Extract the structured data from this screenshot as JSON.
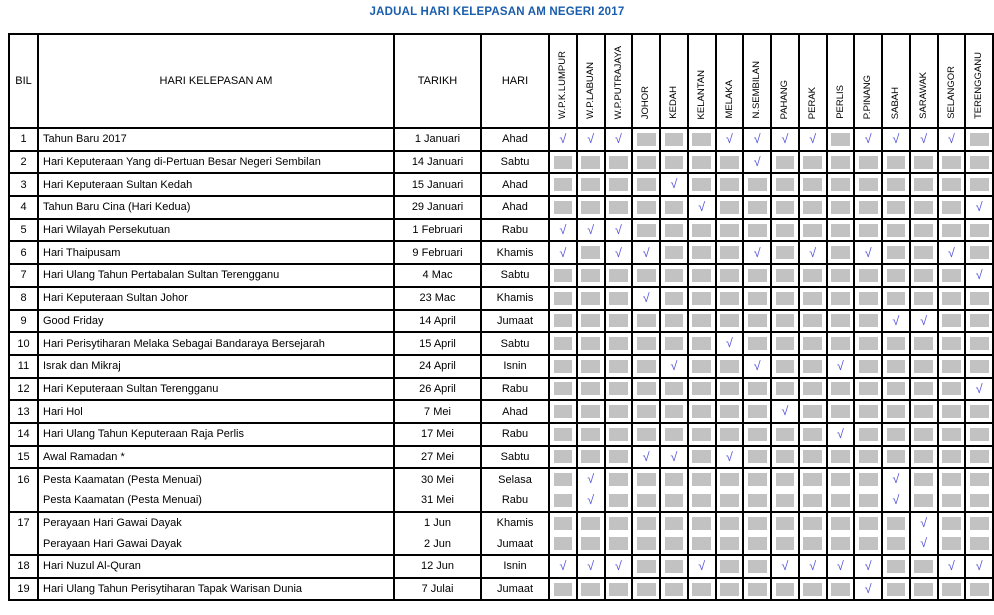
{
  "title": "JADUAL HARI KELEPASAN AM NEGERI 2017",
  "table": {
    "headers": {
      "bil": "BIL",
      "holiday": "HARI KELEPASAN AM",
      "date": "TARIKH",
      "day": "HARI"
    },
    "states": [
      "W.P.K.LUMPUR",
      "W.P.LABUAN",
      "W.P.PUTRAJAYA",
      "JOHOR",
      "KEDAH",
      "KELANTAN",
      "MELAKA",
      "N.SEMBILAN",
      "PAHANG",
      "PERAK",
      "PERLIS",
      "P.PINANG",
      "SABAH",
      "SARAWAK",
      "SELANGOR",
      "TERENGGANU"
    ],
    "check_symbol": "√",
    "colors": {
      "title_blue": "#1a5dab",
      "check_blue": "#5353d9",
      "gray_box": "#c2c2c2"
    },
    "rows": [
      {
        "bil": "1",
        "lines": [
          {
            "holiday": "Tahun Baru 2017",
            "date": "1 Januari",
            "day": "Ahad",
            "marks": [
              1,
              1,
              1,
              0,
              0,
              0,
              1,
              1,
              1,
              1,
              0,
              1,
              1,
              1,
              1,
              0
            ]
          }
        ]
      },
      {
        "bil": "2",
        "lines": [
          {
            "holiday": "Hari Keputeraan Yang di-Pertuan Besar Negeri Sembilan",
            "date": "14 Januari",
            "day": "Sabtu",
            "marks": [
              0,
              0,
              0,
              0,
              0,
              0,
              0,
              1,
              0,
              0,
              0,
              0,
              0,
              0,
              0,
              0
            ]
          }
        ]
      },
      {
        "bil": "3",
        "lines": [
          {
            "holiday": "Hari Keputeraan Sultan Kedah",
            "date": "15 Januari",
            "day": "Ahad",
            "marks": [
              0,
              0,
              0,
              0,
              1,
              0,
              0,
              0,
              0,
              0,
              0,
              0,
              0,
              0,
              0,
              0
            ]
          }
        ]
      },
      {
        "bil": "4",
        "lines": [
          {
            "holiday": "Tahun Baru Cina (Hari Kedua)",
            "date": "29 Januari",
            "day": "Ahad",
            "marks": [
              0,
              0,
              0,
              0,
              0,
              1,
              0,
              0,
              0,
              0,
              0,
              0,
              0,
              0,
              0,
              1
            ]
          }
        ]
      },
      {
        "bil": "5",
        "lines": [
          {
            "holiday": "Hari Wilayah Persekutuan",
            "date": "1 Februari",
            "day": "Rabu",
            "marks": [
              1,
              1,
              1,
              0,
              0,
              0,
              0,
              0,
              0,
              0,
              0,
              0,
              0,
              0,
              0,
              0
            ]
          }
        ]
      },
      {
        "bil": "6",
        "lines": [
          {
            "holiday": "Hari Thaipusam",
            "date": "9 Februari",
            "day": "Khamis",
            "marks": [
              1,
              0,
              1,
              1,
              0,
              0,
              0,
              1,
              0,
              1,
              0,
              1,
              0,
              0,
              1,
              0
            ]
          }
        ]
      },
      {
        "bil": "7",
        "lines": [
          {
            "holiday": "Hari Ulang Tahun Pertabalan Sultan Terengganu",
            "date": "4 Mac",
            "day": "Sabtu",
            "marks": [
              0,
              0,
              0,
              0,
              0,
              0,
              0,
              0,
              0,
              0,
              0,
              0,
              0,
              0,
              0,
              1
            ]
          }
        ]
      },
      {
        "bil": "8",
        "lines": [
          {
            "holiday": "Hari Keputeraan Sultan Johor",
            "date": "23 Mac",
            "day": "Khamis",
            "marks": [
              0,
              0,
              0,
              1,
              0,
              0,
              0,
              0,
              0,
              0,
              0,
              0,
              0,
              0,
              0,
              0
            ]
          }
        ]
      },
      {
        "bil": "9",
        "lines": [
          {
            "holiday": "Good Friday",
            "date": "14 April",
            "day": "Jumaat",
            "marks": [
              0,
              0,
              0,
              0,
              0,
              0,
              0,
              0,
              0,
              0,
              0,
              0,
              1,
              1,
              0,
              0
            ]
          }
        ]
      },
      {
        "bil": "10",
        "lines": [
          {
            "holiday": "Hari Perisytiharan Melaka Sebagai Bandaraya Bersejarah",
            "date": "15 April",
            "day": "Sabtu",
            "marks": [
              0,
              0,
              0,
              0,
              0,
              0,
              1,
              0,
              0,
              0,
              0,
              0,
              0,
              0,
              0,
              0
            ]
          }
        ]
      },
      {
        "bil": "11",
        "lines": [
          {
            "holiday": "Israk dan Mikraj",
            "date": "24 April",
            "day": "Isnin",
            "marks": [
              0,
              0,
              0,
              0,
              1,
              0,
              0,
              1,
              0,
              0,
              1,
              0,
              0,
              0,
              0,
              0
            ]
          }
        ]
      },
      {
        "bil": "12",
        "lines": [
          {
            "holiday": "Hari Keputeraan Sultan Terengganu",
            "date": "26 April",
            "day": "Rabu",
            "marks": [
              0,
              0,
              0,
              0,
              0,
              0,
              0,
              0,
              0,
              0,
              0,
              0,
              0,
              0,
              0,
              1
            ]
          }
        ]
      },
      {
        "bil": "13",
        "lines": [
          {
            "holiday": "Hari Hol",
            "date": "7 Mei",
            "day": "Ahad",
            "marks": [
              0,
              0,
              0,
              0,
              0,
              0,
              0,
              0,
              1,
              0,
              0,
              0,
              0,
              0,
              0,
              0
            ]
          }
        ]
      },
      {
        "bil": "14",
        "lines": [
          {
            "holiday": "Hari Ulang Tahun Keputeraan Raja Perlis",
            "date": "17 Mei",
            "day": "Rabu",
            "marks": [
              0,
              0,
              0,
              0,
              0,
              0,
              0,
              0,
              0,
              0,
              1,
              0,
              0,
              0,
              0,
              0
            ]
          }
        ]
      },
      {
        "bil": "15",
        "lines": [
          {
            "holiday": "Awal Ramadan *",
            "date": "27 Mei",
            "day": "Sabtu",
            "marks": [
              0,
              0,
              0,
              1,
              1,
              0,
              1,
              0,
              0,
              0,
              0,
              0,
              0,
              0,
              0,
              0
            ]
          }
        ]
      },
      {
        "bil": "16",
        "lines": [
          {
            "holiday": "Pesta Kaamatan (Pesta Menuai)",
            "date": "30 Mei",
            "day": "Selasa",
            "marks": [
              0,
              1,
              0,
              0,
              0,
              0,
              0,
              0,
              0,
              0,
              0,
              0,
              1,
              0,
              0,
              0
            ]
          },
          {
            "holiday": "Pesta Kaamatan (Pesta Menuai)",
            "date": "31 Mei",
            "day": "Rabu",
            "marks": [
              0,
              1,
              0,
              0,
              0,
              0,
              0,
              0,
              0,
              0,
              0,
              0,
              1,
              0,
              0,
              0
            ]
          }
        ]
      },
      {
        "bil": "17",
        "lines": [
          {
            "holiday": "Perayaan Hari Gawai Dayak",
            "date": "1 Jun",
            "day": "Khamis",
            "marks": [
              0,
              0,
              0,
              0,
              0,
              0,
              0,
              0,
              0,
              0,
              0,
              0,
              0,
              1,
              0,
              0
            ]
          },
          {
            "holiday": "Perayaan Hari Gawai Dayak",
            "date": "2 Jun",
            "day": "Jumaat",
            "marks": [
              0,
              0,
              0,
              0,
              0,
              0,
              0,
              0,
              0,
              0,
              0,
              0,
              0,
              1,
              0,
              0
            ]
          }
        ]
      },
      {
        "bil": "18",
        "lines": [
          {
            "holiday": "Hari Nuzul Al-Quran",
            "date": "12 Jun",
            "day": "Isnin",
            "marks": [
              1,
              1,
              1,
              0,
              0,
              1,
              0,
              0,
              1,
              1,
              1,
              1,
              0,
              0,
              1,
              1
            ]
          }
        ]
      },
      {
        "bil": "19",
        "lines": [
          {
            "holiday": "Hari Ulang Tahun Perisytiharan Tapak Warisan Dunia",
            "date": "7 Julai",
            "day": "Jumaat",
            "marks": [
              0,
              0,
              0,
              0,
              0,
              0,
              0,
              0,
              0,
              0,
              0,
              1,
              0,
              0,
              0,
              0
            ]
          }
        ]
      }
    ]
  }
}
